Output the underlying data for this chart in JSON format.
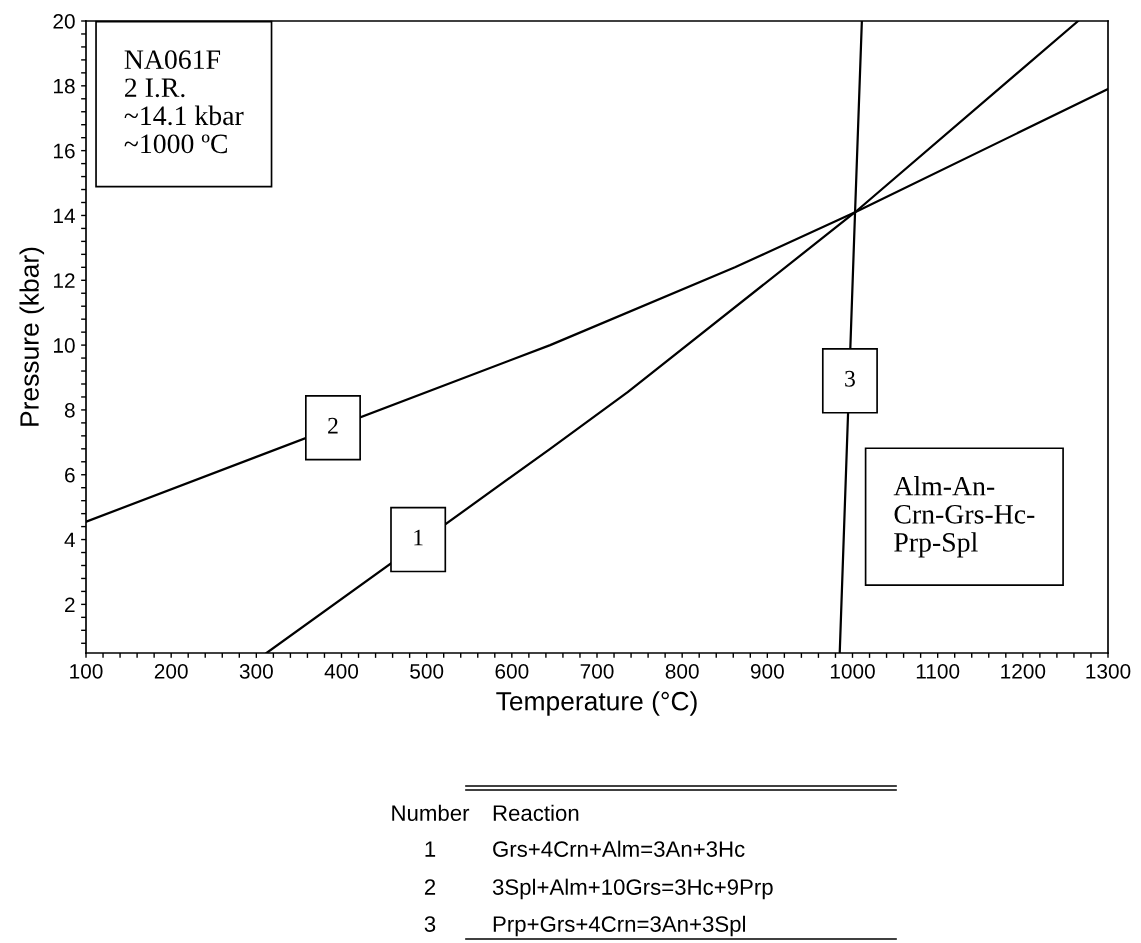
{
  "chart_data": {
    "type": "line",
    "xlabel": "Temperature (°C)",
    "ylabel": "Pressure (kbar)",
    "series": [
      {
        "color": "#000000",
        "x": [
          312,
          645,
          736,
          1003,
          1265
        ],
        "values": [
          0.5,
          6.8,
          8.55,
          14.1,
          20
        ]
      },
      {
        "color": "#000000",
        "x": [
          100,
          645,
          862,
          1003,
          1300
        ],
        "values": [
          4.55,
          10.0,
          12.4,
          14.1,
          17.9
        ]
      },
      {
        "color": "#000000",
        "x": [
          985,
          1003,
          1011
        ],
        "values": [
          0.5,
          14.1,
          20
        ]
      }
    ],
    "xlim": [
      100,
      1300
    ],
    "ylim": [
      0.5,
      20
    ],
    "xticks": [
      100,
      {
        "value": 120,
        "label": null
      },
      {
        "value": 140,
        "label": null
      },
      {
        "value": 160,
        "label": null
      },
      {
        "value": 180,
        "label": null
      },
      200,
      {
        "value": 220,
        "label": null
      },
      {
        "value": 240,
        "label": null
      },
      {
        "value": 260,
        "label": null
      },
      {
        "value": 280,
        "label": null
      },
      300,
      {
        "value": 320,
        "label": null
      },
      {
        "value": 340,
        "label": null
      },
      {
        "value": 360,
        "label": null
      },
      {
        "value": 380,
        "label": null
      },
      400,
      {
        "value": 420,
        "label": null
      },
      {
        "value": 440,
        "label": null
      },
      {
        "value": 460,
        "label": null
      },
      {
        "value": 480,
        "label": null
      },
      500,
      {
        "value": 520,
        "label": null
      },
      {
        "value": 540,
        "label": null
      },
      {
        "value": 560,
        "label": null
      },
      {
        "value": 580,
        "label": null
      },
      600,
      {
        "value": 620,
        "label": null
      },
      {
        "value": 640,
        "label": null
      },
      {
        "value": 660,
        "label": null
      },
      {
        "value": 680,
        "label": null
      },
      700,
      {
        "value": 720,
        "label": null
      },
      {
        "value": 740,
        "label": null
      },
      {
        "value": 760,
        "label": null
      },
      {
        "value": 780,
        "label": null
      },
      800,
      {
        "value": 820,
        "label": null
      },
      {
        "value": 840,
        "label": null
      },
      {
        "value": 860,
        "label": null
      },
      {
        "value": 880,
        "label": null
      },
      900,
      {
        "value": 920,
        "label": null
      },
      {
        "value": 940,
        "label": null
      },
      {
        "value": 960,
        "label": null
      },
      {
        "value": 980,
        "label": null
      },
      1000,
      {
        "value": 1020,
        "label": null
      },
      {
        "value": 1040,
        "label": null
      },
      {
        "value": 1060,
        "label": null
      },
      {
        "value": 1080,
        "label": null
      },
      1100,
      {
        "value": 1120,
        "label": null
      },
      {
        "value": 1140,
        "label": null
      },
      {
        "value": 1160,
        "label": null
      },
      {
        "value": 1180,
        "label": null
      },
      1200,
      {
        "value": 1220,
        "label": null
      },
      {
        "value": 1240,
        "label": null
      },
      {
        "value": 1260,
        "label": null
      },
      {
        "value": 1280,
        "label": null
      },
      1300
    ],
    "yticks": [
      {
        "value": 0.8,
        "label": null
      },
      {
        "value": 1.2,
        "label": null
      },
      {
        "value": 1.6,
        "label": null
      },
      2,
      {
        "value": 2.4,
        "label": null
      },
      {
        "value": 2.8,
        "label": null
      },
      {
        "value": 3.2,
        "label": null
      },
      {
        "value": 3.6,
        "label": null
      },
      4,
      {
        "value": 4.4,
        "label": null
      },
      {
        "value": 4.8,
        "label": null
      },
      {
        "value": 5.2,
        "label": null
      },
      {
        "value": 5.6,
        "label": null
      },
      6,
      {
        "value": 6.4,
        "label": null
      },
      {
        "value": 6.8,
        "label": null
      },
      {
        "value": 7.2,
        "label": null
      },
      {
        "value": 7.6,
        "label": null
      },
      8,
      {
        "value": 8.4,
        "label": null
      },
      {
        "value": 8.8,
        "label": null
      },
      {
        "value": 9.2,
        "label": null
      },
      {
        "value": 9.6,
        "label": null
      },
      10,
      {
        "value": 10.4,
        "label": null
      },
      {
        "value": 10.8,
        "label": null
      },
      {
        "value": 11.2,
        "label": null
      },
      {
        "value": 11.6,
        "label": null
      },
      12,
      {
        "value": 12.4,
        "label": null
      },
      {
        "value": 12.8,
        "label": null
      },
      {
        "value": 13.2,
        "label": null
      },
      {
        "value": 13.6,
        "label": null
      },
      14,
      {
        "value": 14.4,
        "label": null
      },
      {
        "value": 14.8,
        "label": null
      },
      {
        "value": 15.2,
        "label": null
      },
      {
        "value": 15.6,
        "label": null
      },
      16,
      {
        "value": 16.4,
        "label": null
      },
      {
        "value": 16.8,
        "label": null
      },
      {
        "value": 17.2,
        "label": null
      },
      {
        "value": 17.6,
        "label": null
      },
      18,
      {
        "value": 18.4,
        "label": null
      },
      {
        "value": 18.8,
        "label": null
      },
      {
        "value": 19.2,
        "label": null
      },
      {
        "value": 19.6,
        "label": null
      },
      20
    ],
    "grid": false,
    "marker": "none",
    "line_style": "solid",
    "annotations": [
      "NA061F\n2 I.R.\n~14.1 kbar\n~1000 ºC",
      "Alm-An-\nCrn-Grs-Hc-\nPrp-Spl",
      {
        "text": "1",
        "x": 490,
        "y": 4.0
      },
      {
        "text": "2",
        "x": 390,
        "y": 7.45
      },
      {
        "text": "3",
        "x": 997,
        "y": 8.9
      },
      "Number",
      "Reaction",
      "1",
      "Grs+4Crn+Alm=3An+3Hc",
      "2",
      "3Spl+Alm+10Grs=3Hc+9Prp",
      "3",
      "Prp+Grs+4Crn=3An+3Spl"
    ]
  }
}
